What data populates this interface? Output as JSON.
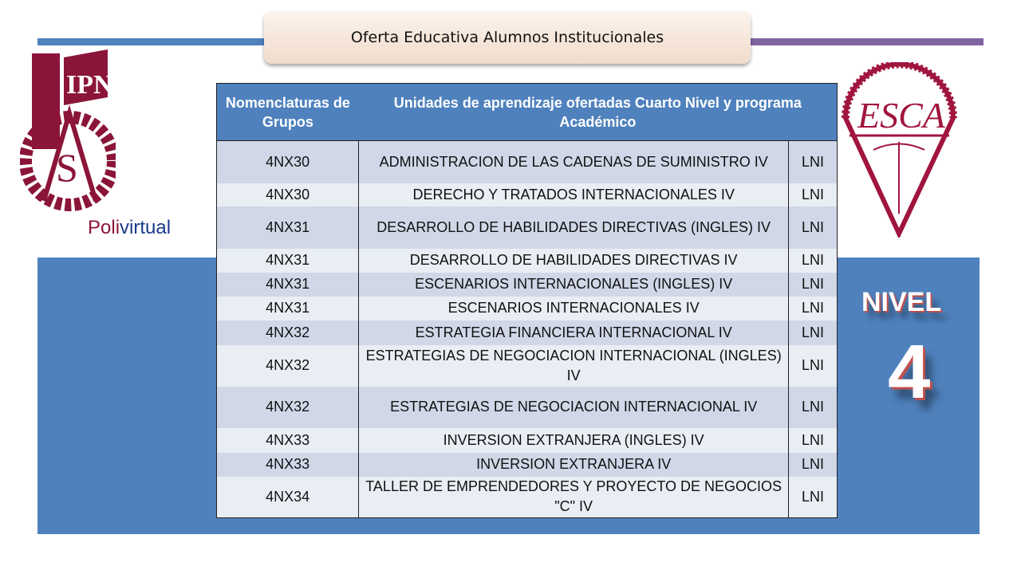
{
  "title": "Oferta Educativa Alumnos Institucionales",
  "logos": {
    "left": "IPN",
    "polivirtual_a": "Poli",
    "polivirtual_b": "virtual",
    "right": "ESCA"
  },
  "colors": {
    "accent_blue": "#4f81bd",
    "accent_purple": "#8064a2",
    "logo_maroon": "#8b1538",
    "nivel_outline": "#c0504d"
  },
  "table": {
    "headers": [
      "Nomenclaturas de Grupos",
      "Unidades de aprendizaje ofertadas Cuarto Nivel y programa Académico"
    ],
    "rows": [
      {
        "group": "4NX30",
        "unit": "ADMINISTRACION DE LAS CADENAS DE SUMINISTRO IV",
        "program": "LNI"
      },
      {
        "group": "4NX30",
        "unit": "DERECHO Y TRATADOS INTERNACIONALES IV",
        "program": "LNI"
      },
      {
        "group": "4NX31",
        "unit": "DESARROLLO DE HABILIDADES DIRECTIVAS (INGLES) IV",
        "program": "LNI"
      },
      {
        "group": "4NX31",
        "unit": "DESARROLLO DE HABILIDADES DIRECTIVAS IV",
        "program": "LNI"
      },
      {
        "group": "4NX31",
        "unit": "ESCENARIOS INTERNACIONALES (INGLES) IV",
        "program": "LNI"
      },
      {
        "group": "4NX31",
        "unit": "ESCENARIOS INTERNACIONALES IV",
        "program": "LNI"
      },
      {
        "group": "4NX32",
        "unit": "ESTRATEGIA FINANCIERA INTERNACIONAL IV",
        "program": "LNI"
      },
      {
        "group": "4NX32",
        "unit": "ESTRATEGIAS DE NEGOCIACION INTERNACIONAL (INGLES) IV",
        "program": "LNI"
      },
      {
        "group": "4NX32",
        "unit": "ESTRATEGIAS DE NEGOCIACION INTERNACIONAL IV",
        "program": "LNI"
      },
      {
        "group": "4NX33",
        "unit": "INVERSION EXTRANJERA (INGLES) IV",
        "program": "LNI"
      },
      {
        "group": "4NX33",
        "unit": "INVERSION EXTRANJERA IV",
        "program": "LNI"
      },
      {
        "group": "4NX34",
        "unit": "TALLER DE EMPRENDEDORES Y PROYECTO DE NEGOCIOS \"C\" IV",
        "program": "LNI"
      }
    ]
  },
  "level": {
    "label": "NIVEL",
    "number": "4"
  }
}
